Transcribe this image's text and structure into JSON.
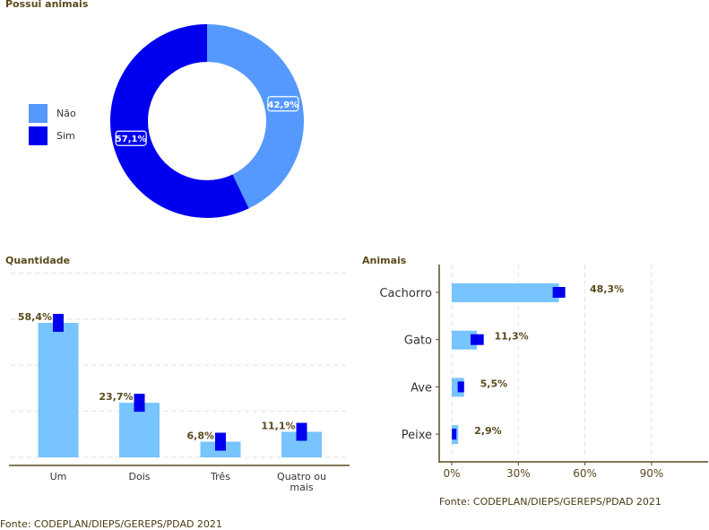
{
  "chart_data": [
    {
      "type": "pie",
      "title": "Possui animais",
      "donut": true,
      "categories": [
        "Não",
        "Sim"
      ],
      "values": [
        42.9,
        57.1
      ],
      "labels": [
        "42,9%",
        "57,1%"
      ],
      "colors": [
        "#5599ff",
        "#0000ee"
      ],
      "legend": "left"
    },
    {
      "type": "bar",
      "title": "Quantidade",
      "categories": [
        "Um",
        "Dois",
        "Três",
        "Quatro ou mais"
      ],
      "values": [
        58.4,
        23.7,
        6.8,
        11.1
      ],
      "labels": [
        "58,4%",
        "23,7%",
        "6,8%",
        "11,1%"
      ],
      "ylim": [
        0,
        80
      ],
      "grid": true,
      "bar_color": "#77c4ff",
      "marker_color": "#0000ee",
      "source": "Fonte: CODEPLAN/DIEPS/GEREPS/PDAD 2021"
    },
    {
      "type": "bar",
      "orientation": "horizontal",
      "title": "Animais",
      "categories": [
        "Cachorro",
        "Gato",
        "Ave",
        "Peixe"
      ],
      "values": [
        48.3,
        11.3,
        5.5,
        2.9
      ],
      "labels": [
        "48,3%",
        "11,3%",
        "5,5%",
        "2,9%"
      ],
      "xticks": [
        "0%",
        "30%",
        "60%",
        "90%"
      ],
      "xtick_values": [
        0,
        30,
        60,
        90
      ],
      "xlim": [
        -5,
        115
      ],
      "grid": true,
      "bar_color": "#77c4ff",
      "marker_color": "#0000ee",
      "source": "Fonte: CODEPLAN/DIEPS/GEREPS/PDAD 2021"
    }
  ]
}
